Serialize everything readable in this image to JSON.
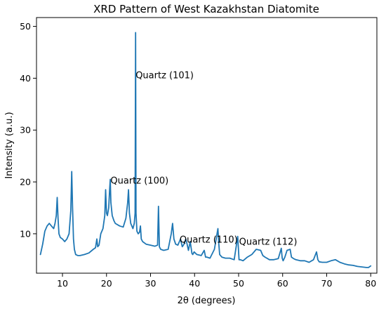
{
  "chart_data": {
    "type": "line",
    "title": "XRD Pattern of West Kazakhstan Diatomite",
    "xlabel": "2θ (degrees)",
    "ylabel": "Intensity (a.u.)",
    "xlim": [
      4.1,
      81.4
    ],
    "ylim": [
      2.4,
      51.7
    ],
    "xticks": [
      10,
      20,
      30,
      40,
      50,
      60,
      70,
      80
    ],
    "yticks": [
      10,
      20,
      30,
      40,
      50
    ],
    "grid": false,
    "legend": "none",
    "line_color": "#1f77b4",
    "series": [
      {
        "x": [
          5,
          5.5,
          6,
          6.5,
          7,
          7.5,
          8,
          8.3,
          8.6,
          8.8,
          9.0,
          9.2,
          9.5,
          10,
          10.5,
          11,
          11.5,
          11.9,
          12.1,
          12.3,
          12.5,
          12.7,
          13,
          13.5,
          14,
          15,
          16,
          17,
          17.5,
          17.8,
          18.0,
          18.3,
          18.7,
          19.2,
          19.6,
          19.8,
          20.0,
          20.2,
          20.5,
          20.7,
          20.85,
          21.0,
          21.3,
          21.7,
          22,
          23,
          23.8,
          24.4,
          24.8,
          25.0,
          25.2,
          25.5,
          26.0,
          26.3,
          26.5,
          26.6,
          26.7,
          26.9,
          27.2,
          27.5,
          27.7,
          27.9,
          28.2,
          29,
          30,
          31,
          31.6,
          31.8,
          32.0,
          32.3,
          33,
          34,
          34.7,
          35.0,
          35.3,
          35.7,
          36.2,
          36.8,
          37.2,
          37.6,
          38.0,
          38.3,
          38.6,
          39.0,
          39.4,
          39.6,
          39.9,
          40.5,
          41.5,
          42.2,
          42.5,
          42.8,
          43.5,
          44.5,
          45.3,
          45.5,
          45.7,
          46.2,
          47,
          48,
          49,
          49.8,
          50.1,
          50.4,
          51,
          52,
          53,
          54,
          55,
          55.5,
          56,
          57,
          58,
          59,
          59.7,
          59.9,
          60.1,
          60.5,
          61,
          61.7,
          62,
          62.5,
          63,
          64,
          65,
          66,
          67,
          67.7,
          68,
          68.3,
          69,
          70,
          71,
          72,
          73,
          74,
          75,
          76,
          77,
          78,
          79,
          79.5,
          80
        ],
        "y": [
          6.0,
          8.0,
          10.5,
          11.5,
          12.0,
          11.5,
          11.0,
          12.0,
          13.5,
          17.0,
          13.0,
          10.0,
          9.3,
          9.0,
          8.5,
          9.0,
          10.0,
          14.5,
          22.0,
          15.0,
          9.0,
          7.0,
          6.0,
          5.8,
          5.8,
          6.0,
          6.3,
          7.0,
          7.3,
          9.0,
          7.5,
          7.8,
          10.0,
          11.0,
          13.5,
          18.5,
          14.0,
          13.5,
          15.0,
          18.5,
          20.5,
          16.0,
          13.5,
          12.5,
          12.0,
          11.5,
          11.3,
          13.0,
          16.0,
          18.5,
          14.0,
          12.0,
          11.0,
          12.0,
          14.0,
          48.8,
          14.0,
          10.5,
          10.0,
          10.3,
          11.5,
          9.0,
          8.5,
          8.0,
          7.8,
          7.6,
          7.8,
          15.3,
          7.5,
          7.0,
          6.8,
          7.0,
          10.0,
          12.0,
          9.0,
          8.0,
          7.8,
          9.0,
          7.5,
          8.0,
          9.0,
          8.0,
          6.8,
          8.5,
          6.2,
          6.0,
          6.5,
          6.0,
          5.8,
          6.8,
          5.5,
          5.5,
          5.3,
          7.0,
          11.0,
          8.0,
          6.0,
          5.5,
          5.3,
          5.3,
          5.0,
          9.5,
          5.0,
          5.0,
          4.8,
          5.5,
          6.0,
          7.0,
          6.8,
          5.8,
          5.5,
          5.0,
          5.0,
          5.2,
          7.2,
          5.3,
          4.8,
          5.5,
          6.8,
          7.0,
          5.5,
          5.2,
          5.0,
          4.8,
          4.8,
          4.5,
          5.0,
          6.5,
          5.0,
          4.6,
          4.5,
          4.5,
          4.8,
          5.0,
          4.5,
          4.2,
          4.0,
          3.9,
          3.7,
          3.6,
          3.5,
          3.5,
          3.8
        ]
      }
    ],
    "annotations": [
      {
        "text": "Quartz (101)",
        "x": 26.6,
        "y": 40
      },
      {
        "text": "Quartz (100)",
        "x": 20.9,
        "y": 19.7
      },
      {
        "text": "Quartz (110)",
        "x": 36.6,
        "y": 8.3
      },
      {
        "text": "Quartz (112)",
        "x": 50.1,
        "y": 7.9
      }
    ]
  }
}
